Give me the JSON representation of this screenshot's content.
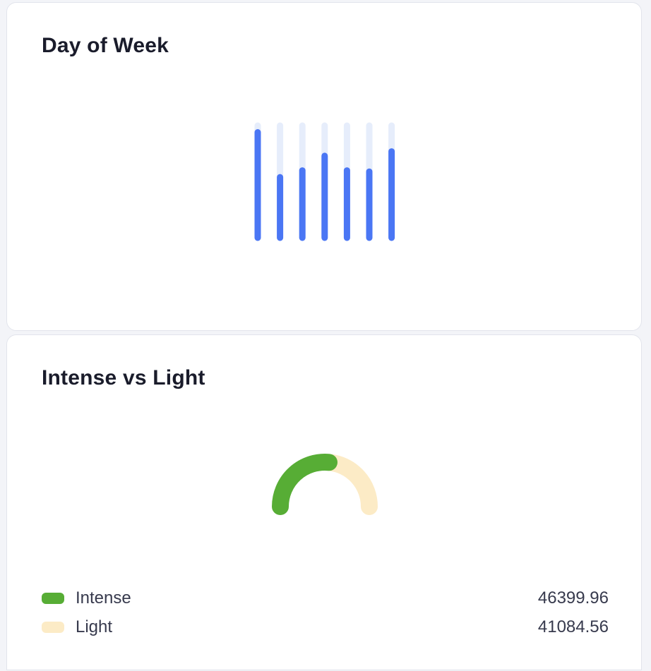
{
  "colors": {
    "bar_fill": "#4a76f4",
    "bar_track": "#e6edfb",
    "intense": "#57ad35",
    "light": "#fcebc6"
  },
  "chart_data": [
    {
      "type": "bar",
      "title": "Day of Week",
      "ylim": [
        0,
        100
      ],
      "values": [
        94,
        54,
        60,
        73,
        60,
        59,
        77
      ],
      "legend": "none",
      "grid": false
    },
    {
      "type": "pie",
      "style": "semi-donut",
      "title": "Intense vs Light",
      "legend": "bottom",
      "series": [
        {
          "name": "Intense",
          "value": 46399.96,
          "label": "46399.96"
        },
        {
          "name": "Light",
          "value": 41084.56,
          "label": "41084.56"
        }
      ]
    }
  ]
}
